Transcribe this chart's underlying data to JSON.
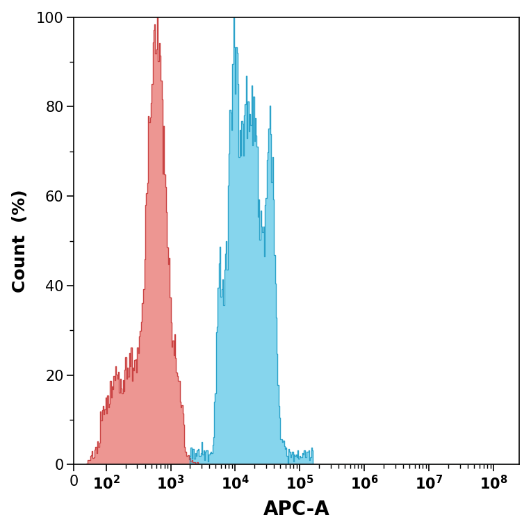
{
  "xlabel": "APC-A",
  "ylabel": "Count  (%)",
  "ylim": [
    0,
    100
  ],
  "yticks": [
    0,
    20,
    40,
    60,
    80,
    100
  ],
  "red_color": "#E8736E",
  "red_edge_color": "#C84040",
  "blue_color": "#5EC8E8",
  "blue_edge_color": "#28A0C8",
  "red_alpha": 0.75,
  "blue_alpha": 0.75,
  "background_color": "#ffffff",
  "fig_width": 7.64,
  "fig_height": 7.64,
  "dpi": 100
}
